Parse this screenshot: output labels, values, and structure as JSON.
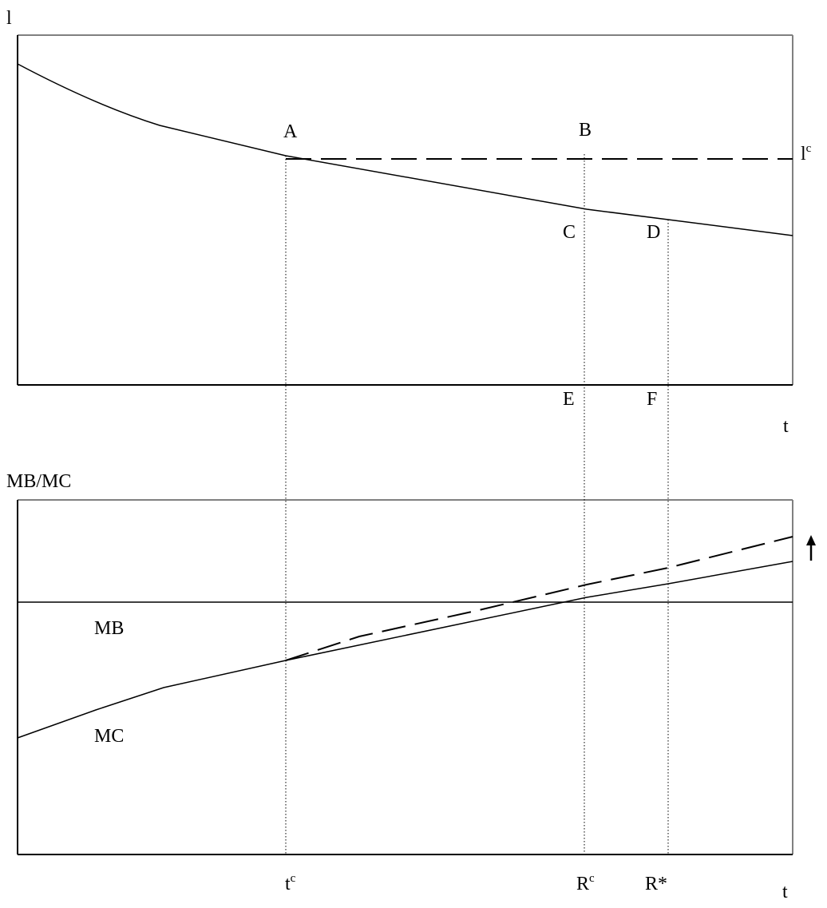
{
  "top_panel": {
    "y_axis_label": "l",
    "x_axis_label": "t",
    "points": {
      "A": "A",
      "B": "B",
      "C": "C",
      "D": "D",
      "E": "E",
      "F": "F"
    },
    "dashed_line_label": {
      "base": "l",
      "sup": "c"
    }
  },
  "bottom_panel": {
    "y_axis_label": "MB/MC",
    "x_axis_label": "t",
    "curve_labels": {
      "mb": "MB",
      "mc": "MC"
    },
    "arrow": "up-arrow-icon"
  },
  "x_markers": [
    {
      "base": "t",
      "sup": "c"
    },
    {
      "base": "R",
      "sup": "c"
    },
    {
      "base": "R*",
      "sup": ""
    }
  ],
  "colors": {
    "line": "#000000",
    "frame_light": "#808080"
  }
}
